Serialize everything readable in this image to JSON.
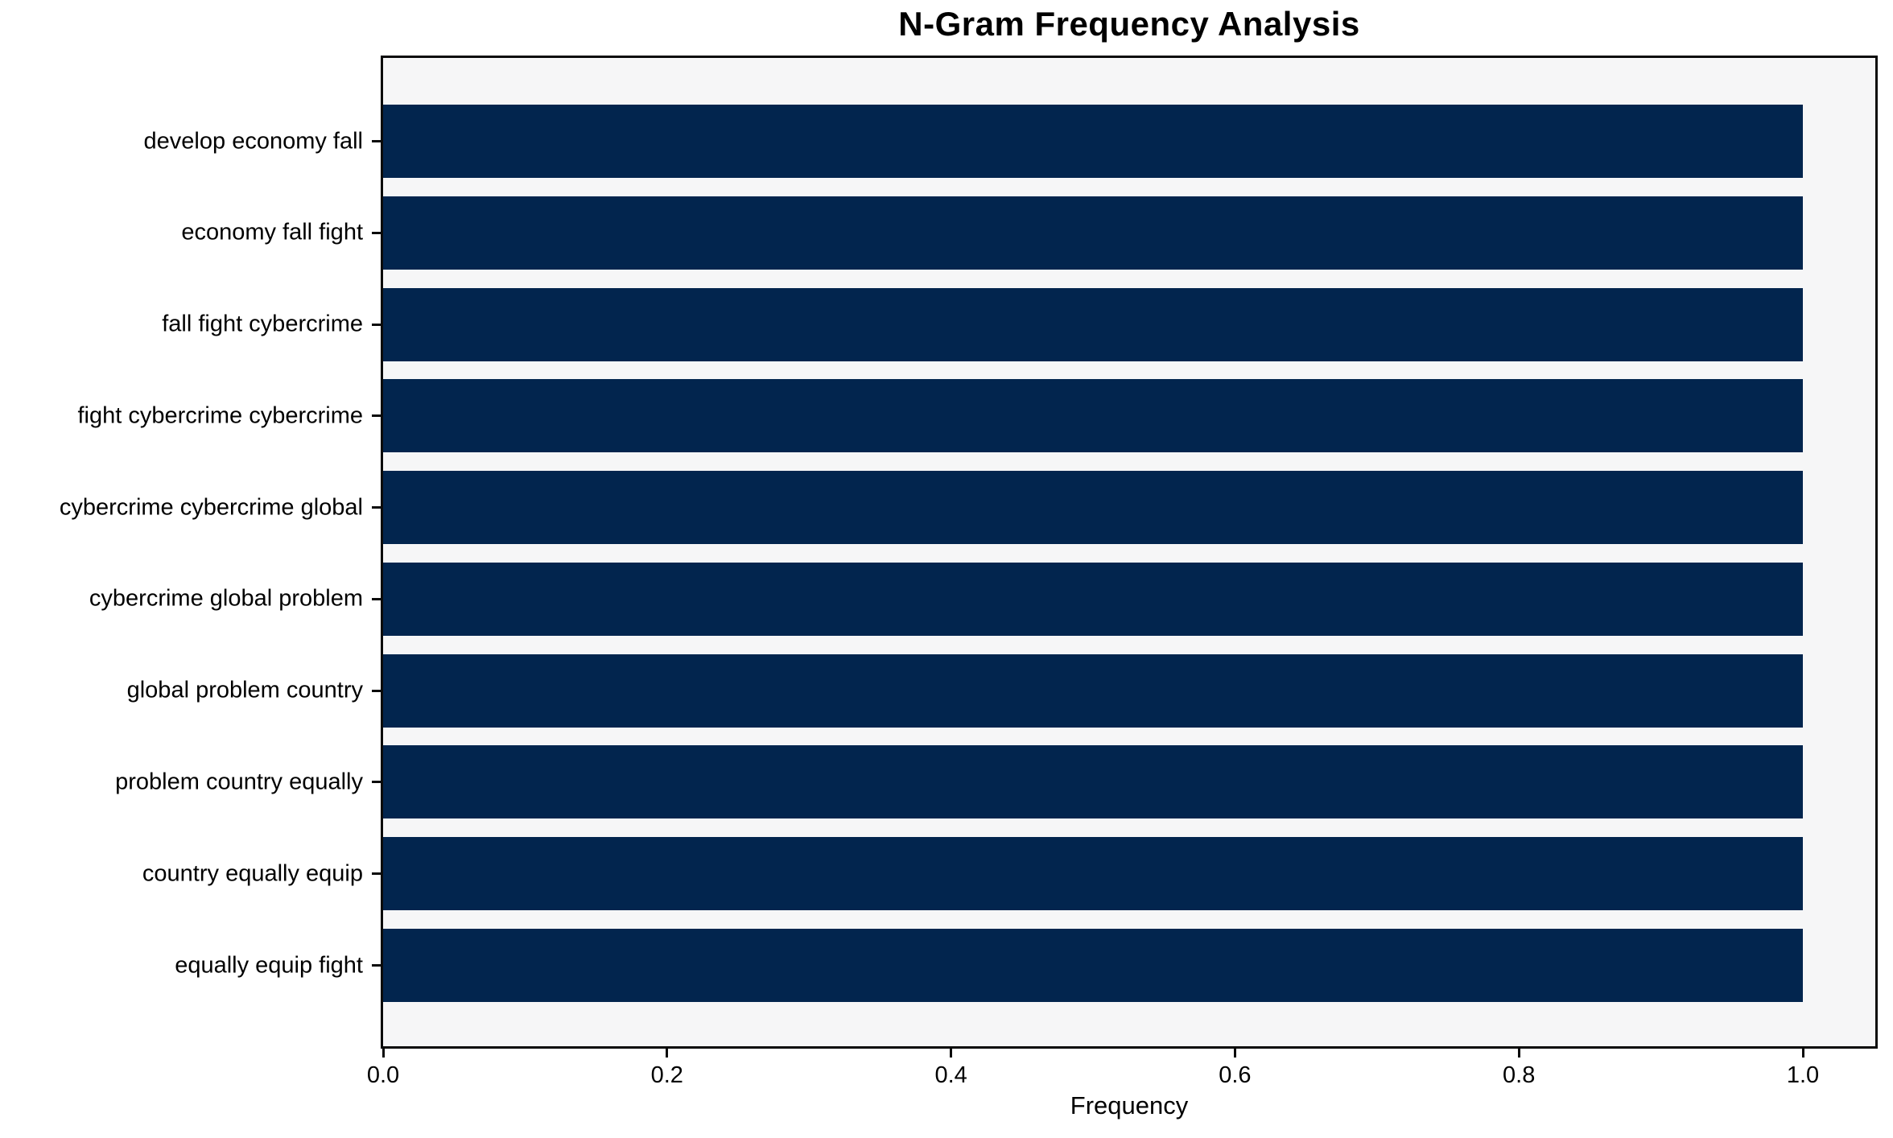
{
  "chart_data": {
    "type": "bar",
    "orientation": "horizontal",
    "title": "N-Gram Frequency Analysis",
    "xlabel": "Frequency",
    "ylabel": "",
    "categories": [
      "develop economy fall",
      "economy fall fight",
      "fall fight cybercrime",
      "fight cybercrime cybercrime",
      "cybercrime cybercrime global",
      "cybercrime global problem",
      "global problem country",
      "problem country equally",
      "country equally equip",
      "equally equip fight"
    ],
    "values": [
      1.0,
      1.0,
      1.0,
      1.0,
      1.0,
      1.0,
      1.0,
      1.0,
      1.0,
      1.0
    ],
    "xticks": [
      "0.0",
      "0.2",
      "0.4",
      "0.6",
      "0.8",
      "1.0"
    ],
    "xtick_values": [
      0.0,
      0.2,
      0.4,
      0.6,
      0.8,
      1.0
    ],
    "xlim": [
      0.0,
      1.051
    ],
    "grid": false,
    "legend_position": "none",
    "colors": {
      "bar": "#02254e",
      "plot_background": "#f6f6f7",
      "figure_background": "#ffffff",
      "text": "#000000",
      "spine": "#0a0a0a"
    }
  }
}
